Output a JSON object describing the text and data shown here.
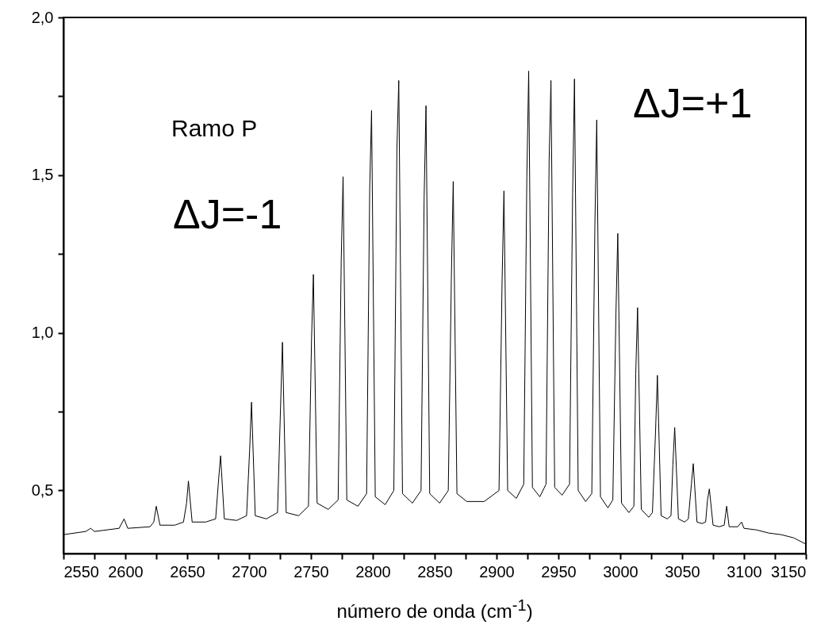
{
  "chart_data": {
    "type": "line",
    "xlabel": "número de onda (cm$^{-1}$)",
    "annotations": [
      "Ramo P",
      "ΔJ=-1",
      "ΔJ=+1"
    ],
    "xlim": [
      2550,
      3150
    ],
    "ylim": [
      0.3,
      2.0
    ],
    "xticks": [
      2550,
      {
        "value": 2575,
        "label": null
      },
      2600,
      {
        "value": 2625,
        "label": null
      },
      2650,
      {
        "value": 2675,
        "label": null
      },
      2700,
      {
        "value": 2725,
        "label": null
      },
      2750,
      {
        "value": 2775,
        "label": null
      },
      2800,
      {
        "value": 2825,
        "label": null
      },
      2850,
      {
        "value": 2875,
        "label": null
      },
      2900,
      {
        "value": 2925,
        "label": null
      },
      2950,
      {
        "value": 2975,
        "label": null
      },
      3000,
      {
        "value": 3025,
        "label": null
      },
      3050,
      {
        "value": 3075,
        "label": null
      },
      3100,
      {
        "value": 3125,
        "label": null
      },
      3150
    ],
    "yticks": [
      {
        "value": 0.5,
        "label": "0,5"
      },
      {
        "value": 0.75,
        "label": null
      },
      {
        "value": 1.0,
        "label": "1,0"
      },
      {
        "value": 1.25,
        "label": null
      },
      {
        "value": 1.5,
        "label": "1,5"
      },
      {
        "value": 1.75,
        "label": null
      },
      {
        "value": 2.0,
        "label": "2,0"
      }
    ],
    "grid": false,
    "marker": "none",
    "line_style": "solid",
    "series": [
      {
        "color": "#000000",
        "x": [
          2550,
          2568,
          2572,
          2575,
          2595,
          2599,
          2602,
          2620,
          2623,
          2625,
          2628,
          2640,
          2647,
          2649.5,
          2651,
          2654,
          2665,
          2673,
          2675.5,
          2677,
          2680,
          2690,
          2698,
          2700.5,
          2702,
          2705,
          2714,
          2723,
          2725.5,
          2727,
          2730,
          2740,
          2748,
          2750.5,
          2752,
          2755,
          2764,
          2772,
          2774.5,
          2776,
          2779,
          2788,
          2795,
          2797.5,
          2799,
          2802,
          2810,
          2817,
          2819.5,
          2821,
          2824,
          2832,
          2839,
          2841.5,
          2843,
          2846,
          2854,
          2861,
          2863.5,
          2865,
          2868,
          2876,
          2890,
          2902,
          2904.5,
          2906,
          2909,
          2916,
          2922,
          2924.5,
          2926,
          2929,
          2935,
          2940,
          2942.5,
          2944,
          2947,
          2953,
          2959,
          2961.5,
          2963,
          2966,
          2972,
          2977,
          2979.5,
          2981,
          2984,
          2990,
          2994,
          2996.5,
          2998,
          3001,
          3007,
          3011,
          3012.5,
          3014,
          3017,
          3023,
          3026,
          3028.5,
          3030,
          3033,
          3038,
          3041,
          3042.5,
          3044,
          3047,
          3052,
          3055,
          3057.5,
          3059,
          3062,
          3066,
          3069,
          3070.5,
          3072,
          3075,
          3080,
          3084,
          3086,
          3088,
          3095,
          3098,
          3100,
          3110,
          3120,
          3130,
          3140,
          3150
        ],
        "values": [
          0.36,
          0.37,
          0.38,
          0.37,
          0.38,
          0.41,
          0.38,
          0.385,
          0.4,
          0.45,
          0.39,
          0.39,
          0.4,
          0.46,
          0.53,
          0.4,
          0.4,
          0.41,
          0.54,
          0.61,
          0.41,
          0.405,
          0.42,
          0.63,
          0.78,
          0.42,
          0.41,
          0.43,
          0.77,
          0.97,
          0.43,
          0.42,
          0.45,
          0.98,
          1.185,
          0.46,
          0.44,
          0.47,
          1.235,
          1.495,
          0.47,
          0.45,
          0.49,
          1.455,
          1.705,
          0.48,
          0.455,
          0.5,
          1.585,
          1.8,
          0.49,
          0.46,
          0.5,
          1.43,
          1.72,
          0.49,
          0.46,
          0.5,
          1.175,
          1.48,
          0.49,
          0.465,
          0.465,
          0.5,
          1.165,
          1.45,
          0.5,
          0.475,
          0.52,
          1.495,
          1.83,
          0.51,
          0.48,
          0.52,
          1.545,
          1.8,
          0.51,
          0.485,
          0.52,
          1.44,
          1.805,
          0.5,
          0.465,
          0.49,
          1.345,
          1.675,
          0.48,
          0.445,
          0.47,
          1.06,
          1.315,
          0.46,
          0.43,
          0.45,
          0.87,
          1.08,
          0.44,
          0.415,
          0.43,
          0.685,
          0.865,
          0.42,
          0.41,
          0.42,
          0.58,
          0.7,
          0.41,
          0.4,
          0.41,
          0.52,
          0.585,
          0.4,
          0.395,
          0.4,
          0.47,
          0.505,
          0.39,
          0.385,
          0.39,
          0.45,
          0.385,
          0.385,
          0.4,
          0.38,
          0.375,
          0.365,
          0.36,
          0.35,
          0.33
        ]
      }
    ]
  }
}
